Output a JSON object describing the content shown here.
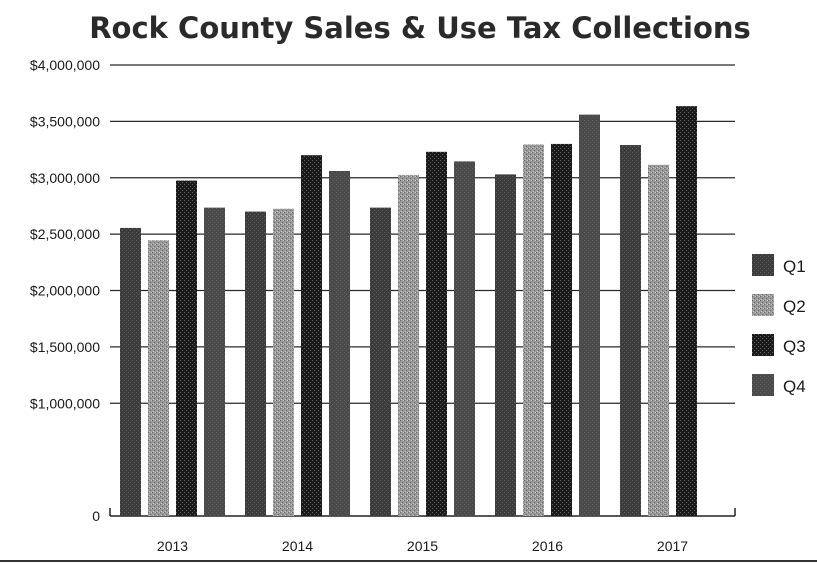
{
  "chart_data": {
    "type": "bar",
    "title": "Rock County Sales & Use Tax Collections",
    "xlabel": "",
    "ylabel": "",
    "categories": [
      "2013",
      "2014",
      "2015",
      "2016",
      "2017"
    ],
    "series": [
      {
        "name": "Q1",
        "values": [
          2555000,
          2700000,
          2735000,
          3030000,
          3290000
        ]
      },
      {
        "name": "Q2",
        "values": [
          2445000,
          2725000,
          3025000,
          3295000,
          3115000
        ]
      },
      {
        "name": "Q3",
        "values": [
          2975000,
          3200000,
          3230000,
          3300000,
          3635000
        ]
      },
      {
        "name": "Q4",
        "values": [
          2735000,
          3060000,
          3145000,
          3560000,
          null
        ]
      }
    ],
    "ylim": [
      0,
      4000000
    ],
    "yticks": [
      0,
      1000000,
      1500000,
      2000000,
      2500000,
      3000000,
      3500000,
      4000000
    ],
    "ytick_labels": [
      "0",
      "$1,000,000",
      "$1,500,000",
      "$2,000,000",
      "$2,500,000",
      "$3,000,000",
      "$3,500,000",
      "$4,000,000"
    ],
    "grid": true,
    "legend_position": "right",
    "colors": {
      "Q1": "#3c3c3c",
      "Q2": "#9a9a9a",
      "Q3": "#1b1b1b",
      "Q4": "#4a4a4a",
      "grid": "#2a2a2a",
      "axis": "#222222"
    }
  }
}
